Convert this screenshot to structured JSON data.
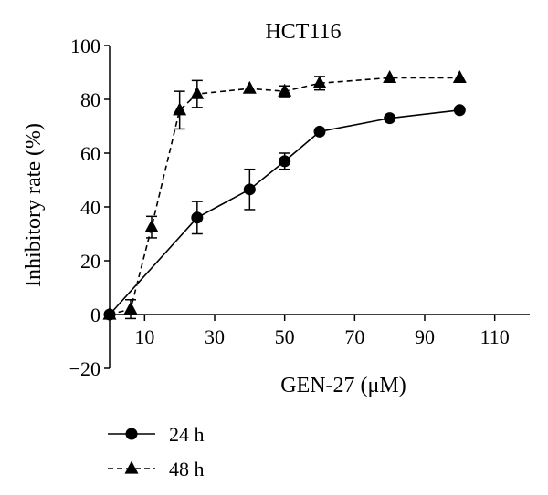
{
  "chart_data": {
    "type": "line",
    "title": "HCT116",
    "xlabel": "GEN-27 (μM)",
    "ylabel": "Inhibitory rate (%)",
    "xlim": [
      0,
      120
    ],
    "ylim": [
      -20,
      100
    ],
    "x_ticks": [
      10,
      30,
      50,
      70,
      90,
      110
    ],
    "y_ticks": [
      -20,
      0,
      20,
      40,
      60,
      80,
      100
    ],
    "x_tick_labels": [
      "10",
      "30",
      "50",
      "70",
      "90",
      "110"
    ],
    "y_tick_labels": [
      "−20",
      "0",
      "20",
      "40",
      "60",
      "80",
      "100"
    ],
    "grid": false,
    "legend_position": "bottom-left",
    "series": [
      {
        "name": "24 h",
        "marker": "circle",
        "line_style": "solid",
        "x": [
          0,
          25,
          40,
          50,
          60,
          80,
          100
        ],
        "y": [
          0,
          36,
          46.5,
          57,
          68,
          73,
          76
        ],
        "error": [
          0,
          6,
          7.5,
          3,
          0,
          0,
          0
        ]
      },
      {
        "name": "48 h",
        "marker": "triangle",
        "line_style": "dashed",
        "x": [
          0,
          6,
          12,
          20,
          25,
          40,
          50,
          60,
          80,
          100
        ],
        "y": [
          0,
          2,
          32.5,
          76,
          82,
          84,
          83,
          86,
          88,
          88
        ],
        "error": [
          0,
          3.5,
          4,
          7,
          5,
          0,
          2,
          2.5,
          0,
          0
        ]
      }
    ]
  }
}
